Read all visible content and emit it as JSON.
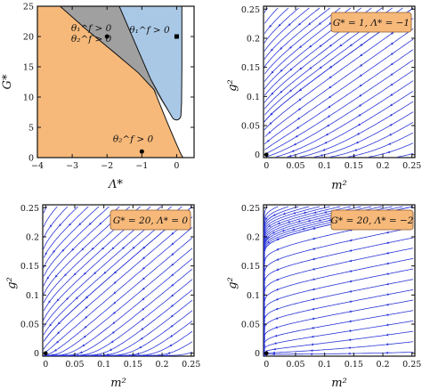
{
  "chart_data": [
    {
      "id": "phase_diagram",
      "type": "area",
      "xlabel": "Λ*",
      "ylabel": "G*",
      "xlim": [
        -4,
        0.5
      ],
      "ylim": [
        0,
        25
      ],
      "xticks": [
        "−4",
        "−3",
        "−2",
        "−1",
        "0"
      ],
      "yticks": [
        "0",
        "5",
        "10",
        "15",
        "20",
        "25"
      ],
      "regions": [
        {
          "name": "orange",
          "color": "#f7b97a",
          "label_lines": [
            "θ₂^f > 0"
          ],
          "label_anchor": [
            -1.25,
            2.6
          ]
        },
        {
          "name": "gray",
          "color": "#a0a0a0",
          "label_lines": [
            "θ₁^f > 0",
            "θ₂^f > 0"
          ],
          "label_anchor": [
            -2.45,
            20.9
          ]
        },
        {
          "name": "blue",
          "color": "#a9c8e6",
          "label_lines": [
            "θ₁^f > 0"
          ],
          "label_anchor": [
            -0.78,
            20.6
          ]
        }
      ],
      "markers": [
        {
          "shape": "circle",
          "x": -2,
          "y": 20
        },
        {
          "shape": "square",
          "x": 0,
          "y": 20
        },
        {
          "shape": "circle",
          "x": -1,
          "y": 1
        }
      ],
      "boundary_orange_gray": [
        [
          -3.35,
          25
        ],
        [
          -2.6,
          21.2
        ],
        [
          -1.8,
          17.4
        ],
        [
          -1.1,
          14.0
        ],
        [
          -0.65,
          11.2
        ]
      ],
      "boundary_blue_left": [
        [
          -1.65,
          25
        ],
        [
          -1.35,
          21
        ],
        [
          -1.05,
          17
        ],
        [
          -0.75,
          13
        ],
        [
          -0.42,
          9.5
        ],
        [
          -0.1,
          6.4
        ]
      ],
      "boundary_blue_right": [
        [
          0.15,
          25
        ],
        [
          0.15,
          15
        ],
        [
          0.14,
          9
        ],
        [
          0.12,
          6.8
        ]
      ],
      "boundary_bottom": [
        [
          -0.65,
          11.2
        ],
        [
          -0.3,
          6.2
        ],
        [
          -0.05,
          2.8
        ],
        [
          0.12,
          0.6
        ],
        [
          0.18,
          0
        ]
      ]
    },
    {
      "id": "flow_1",
      "type": "stream",
      "xlabel": "m²",
      "ylabel": "g²",
      "xlim": [
        -0.005,
        0.255
      ],
      "ylim": [
        -0.005,
        0.255
      ],
      "xticks": [
        "0",
        "0.05",
        "0.1",
        "0.15",
        "0.2",
        "0.25"
      ],
      "yticks": [
        "0",
        "0.05",
        "0.1",
        "0.15",
        "0.2",
        "0.25"
      ],
      "legend": "G* = 1, Λ* = −1",
      "fixed_point": [
        0,
        0
      ],
      "flow_color": "#2b36d6"
    },
    {
      "id": "flow_2",
      "type": "stream",
      "xlabel": "m²",
      "ylabel": "g²",
      "xlim": [
        -0.005,
        0.255
      ],
      "ylim": [
        -0.005,
        0.255
      ],
      "xticks": [
        "0",
        "0.05",
        "0.1",
        "0.15",
        "0.2",
        "0.25"
      ],
      "yticks": [
        "0",
        "0.05",
        "0.1",
        "0.15",
        "0.2",
        "0.25"
      ],
      "legend": "G* = 20, Λ* = 0",
      "fixed_point": [
        0,
        0
      ],
      "flow_color": "#2b36d6"
    },
    {
      "id": "flow_3",
      "type": "stream",
      "xlabel": "m²",
      "ylabel": "g²",
      "xlim": [
        -0.005,
        0.255
      ],
      "ylim": [
        -0.005,
        0.255
      ],
      "xticks": [
        "0",
        "0.05",
        "0.1",
        "0.15",
        "0.2",
        "0.25"
      ],
      "yticks": [
        "0",
        "0.05",
        "0.1",
        "0.15",
        "0.2",
        "0.25"
      ],
      "legend": "G* = 20, Λ* = −2",
      "fixed_point": [
        0,
        0
      ],
      "flow_color": "#2b36d6"
    }
  ],
  "colors": {
    "frame": "#111111",
    "legend_fill": "#f7b97a",
    "legend_stroke": "#8a5a2b"
  }
}
